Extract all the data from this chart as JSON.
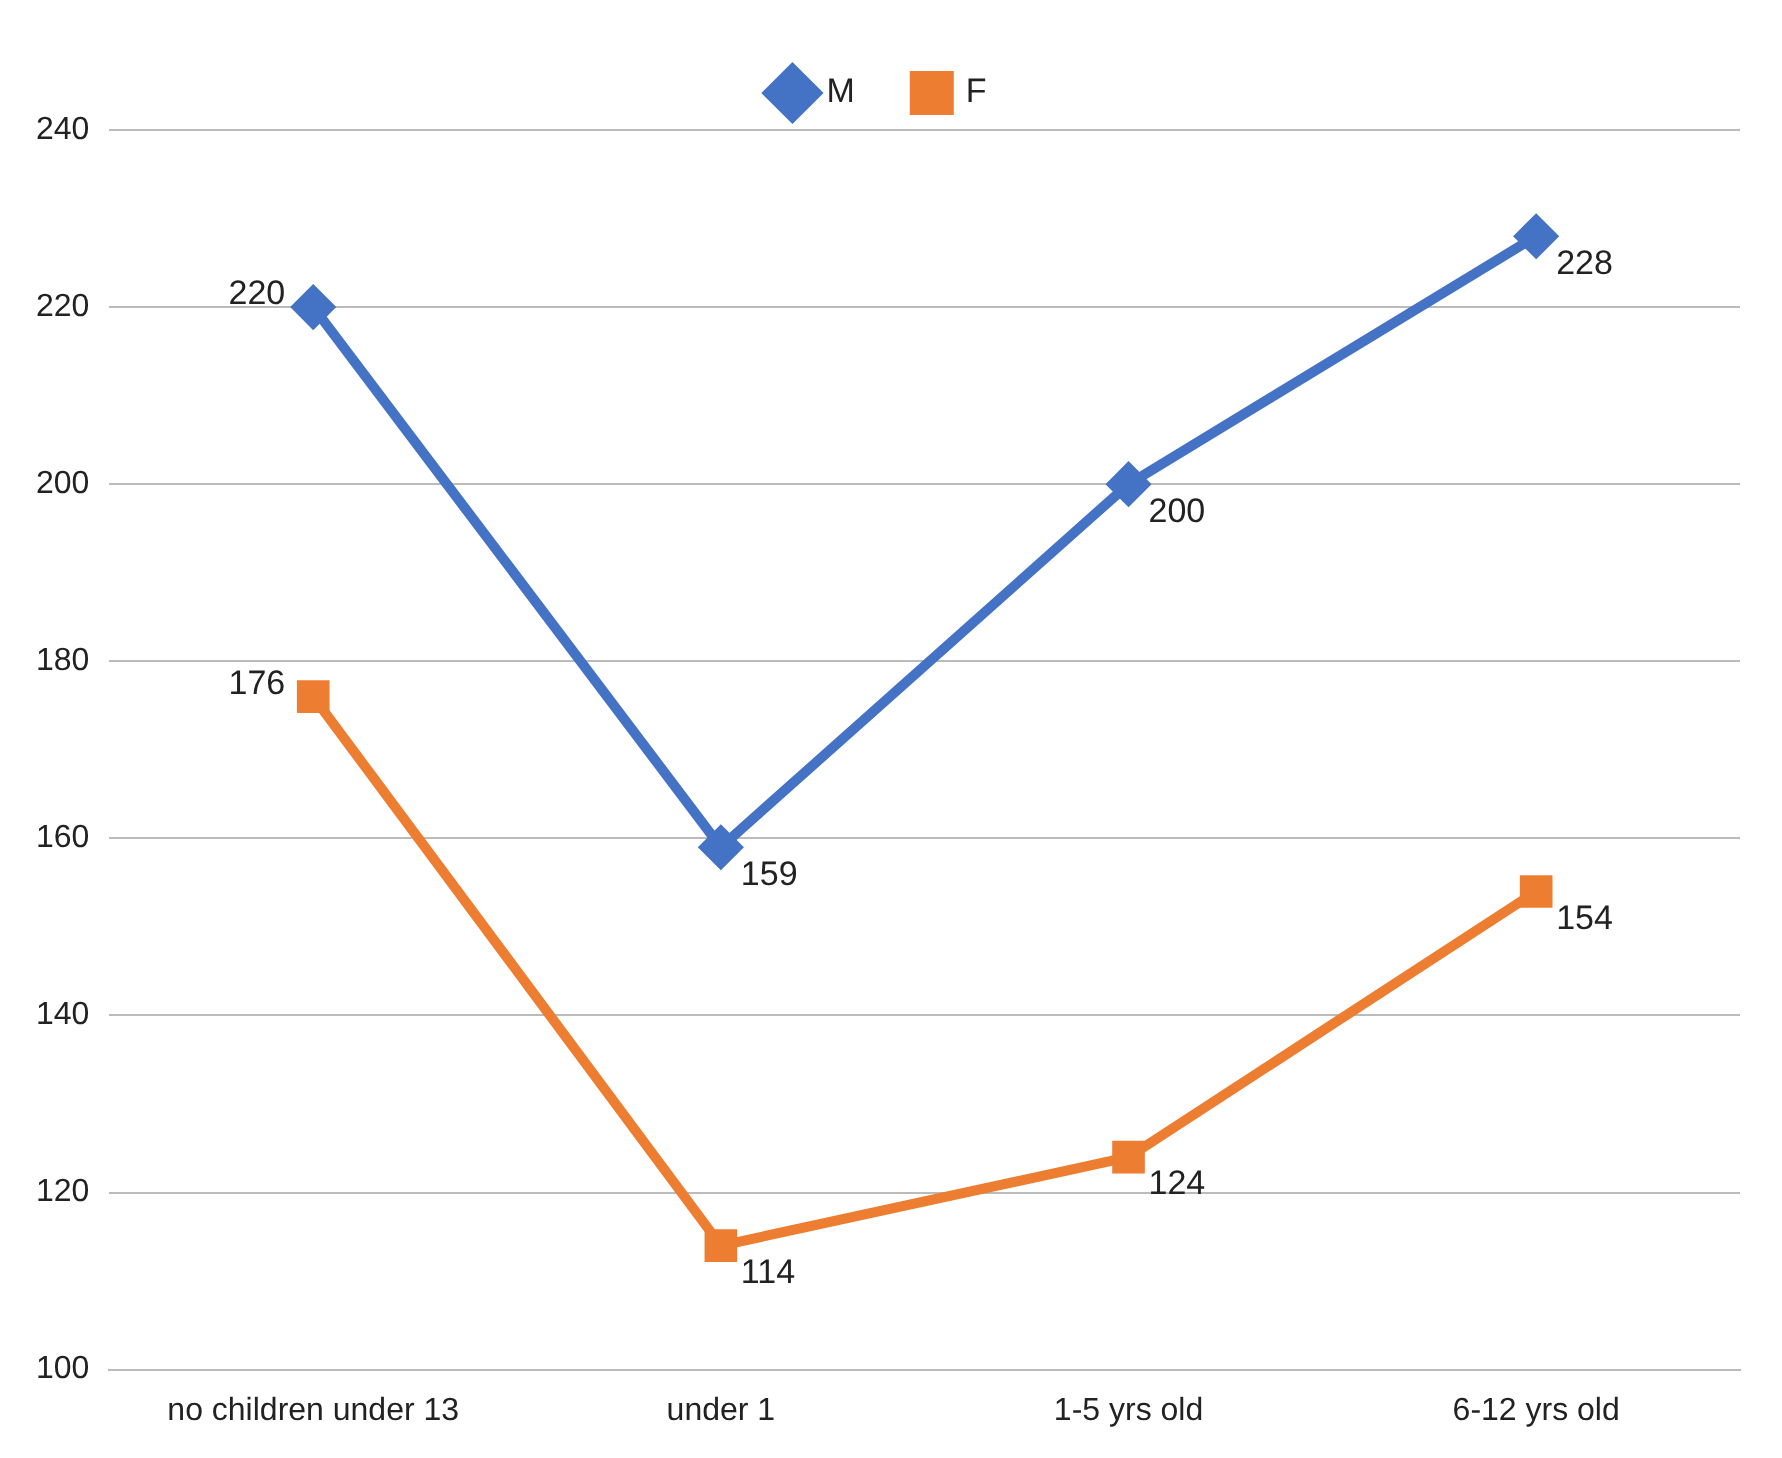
{
  "chart_data": {
    "type": "line",
    "categories": [
      "no children under 13",
      "under 1",
      "1-5 yrs old",
      "6-12 yrs old"
    ],
    "series": [
      {
        "name": "M",
        "color": "#4472c4",
        "marker": "diamond",
        "values": [
          220,
          159,
          200,
          228
        ]
      },
      {
        "name": "F",
        "color": "#ed7d31",
        "marker": "square",
        "values": [
          176,
          114,
          124,
          154
        ]
      }
    ],
    "ylim": [
      100,
      240
    ],
    "yticks": [
      100,
      120,
      140,
      160,
      180,
      200,
      220,
      240
    ],
    "grid": "y",
    "legend": "top",
    "data_labels": true
  }
}
